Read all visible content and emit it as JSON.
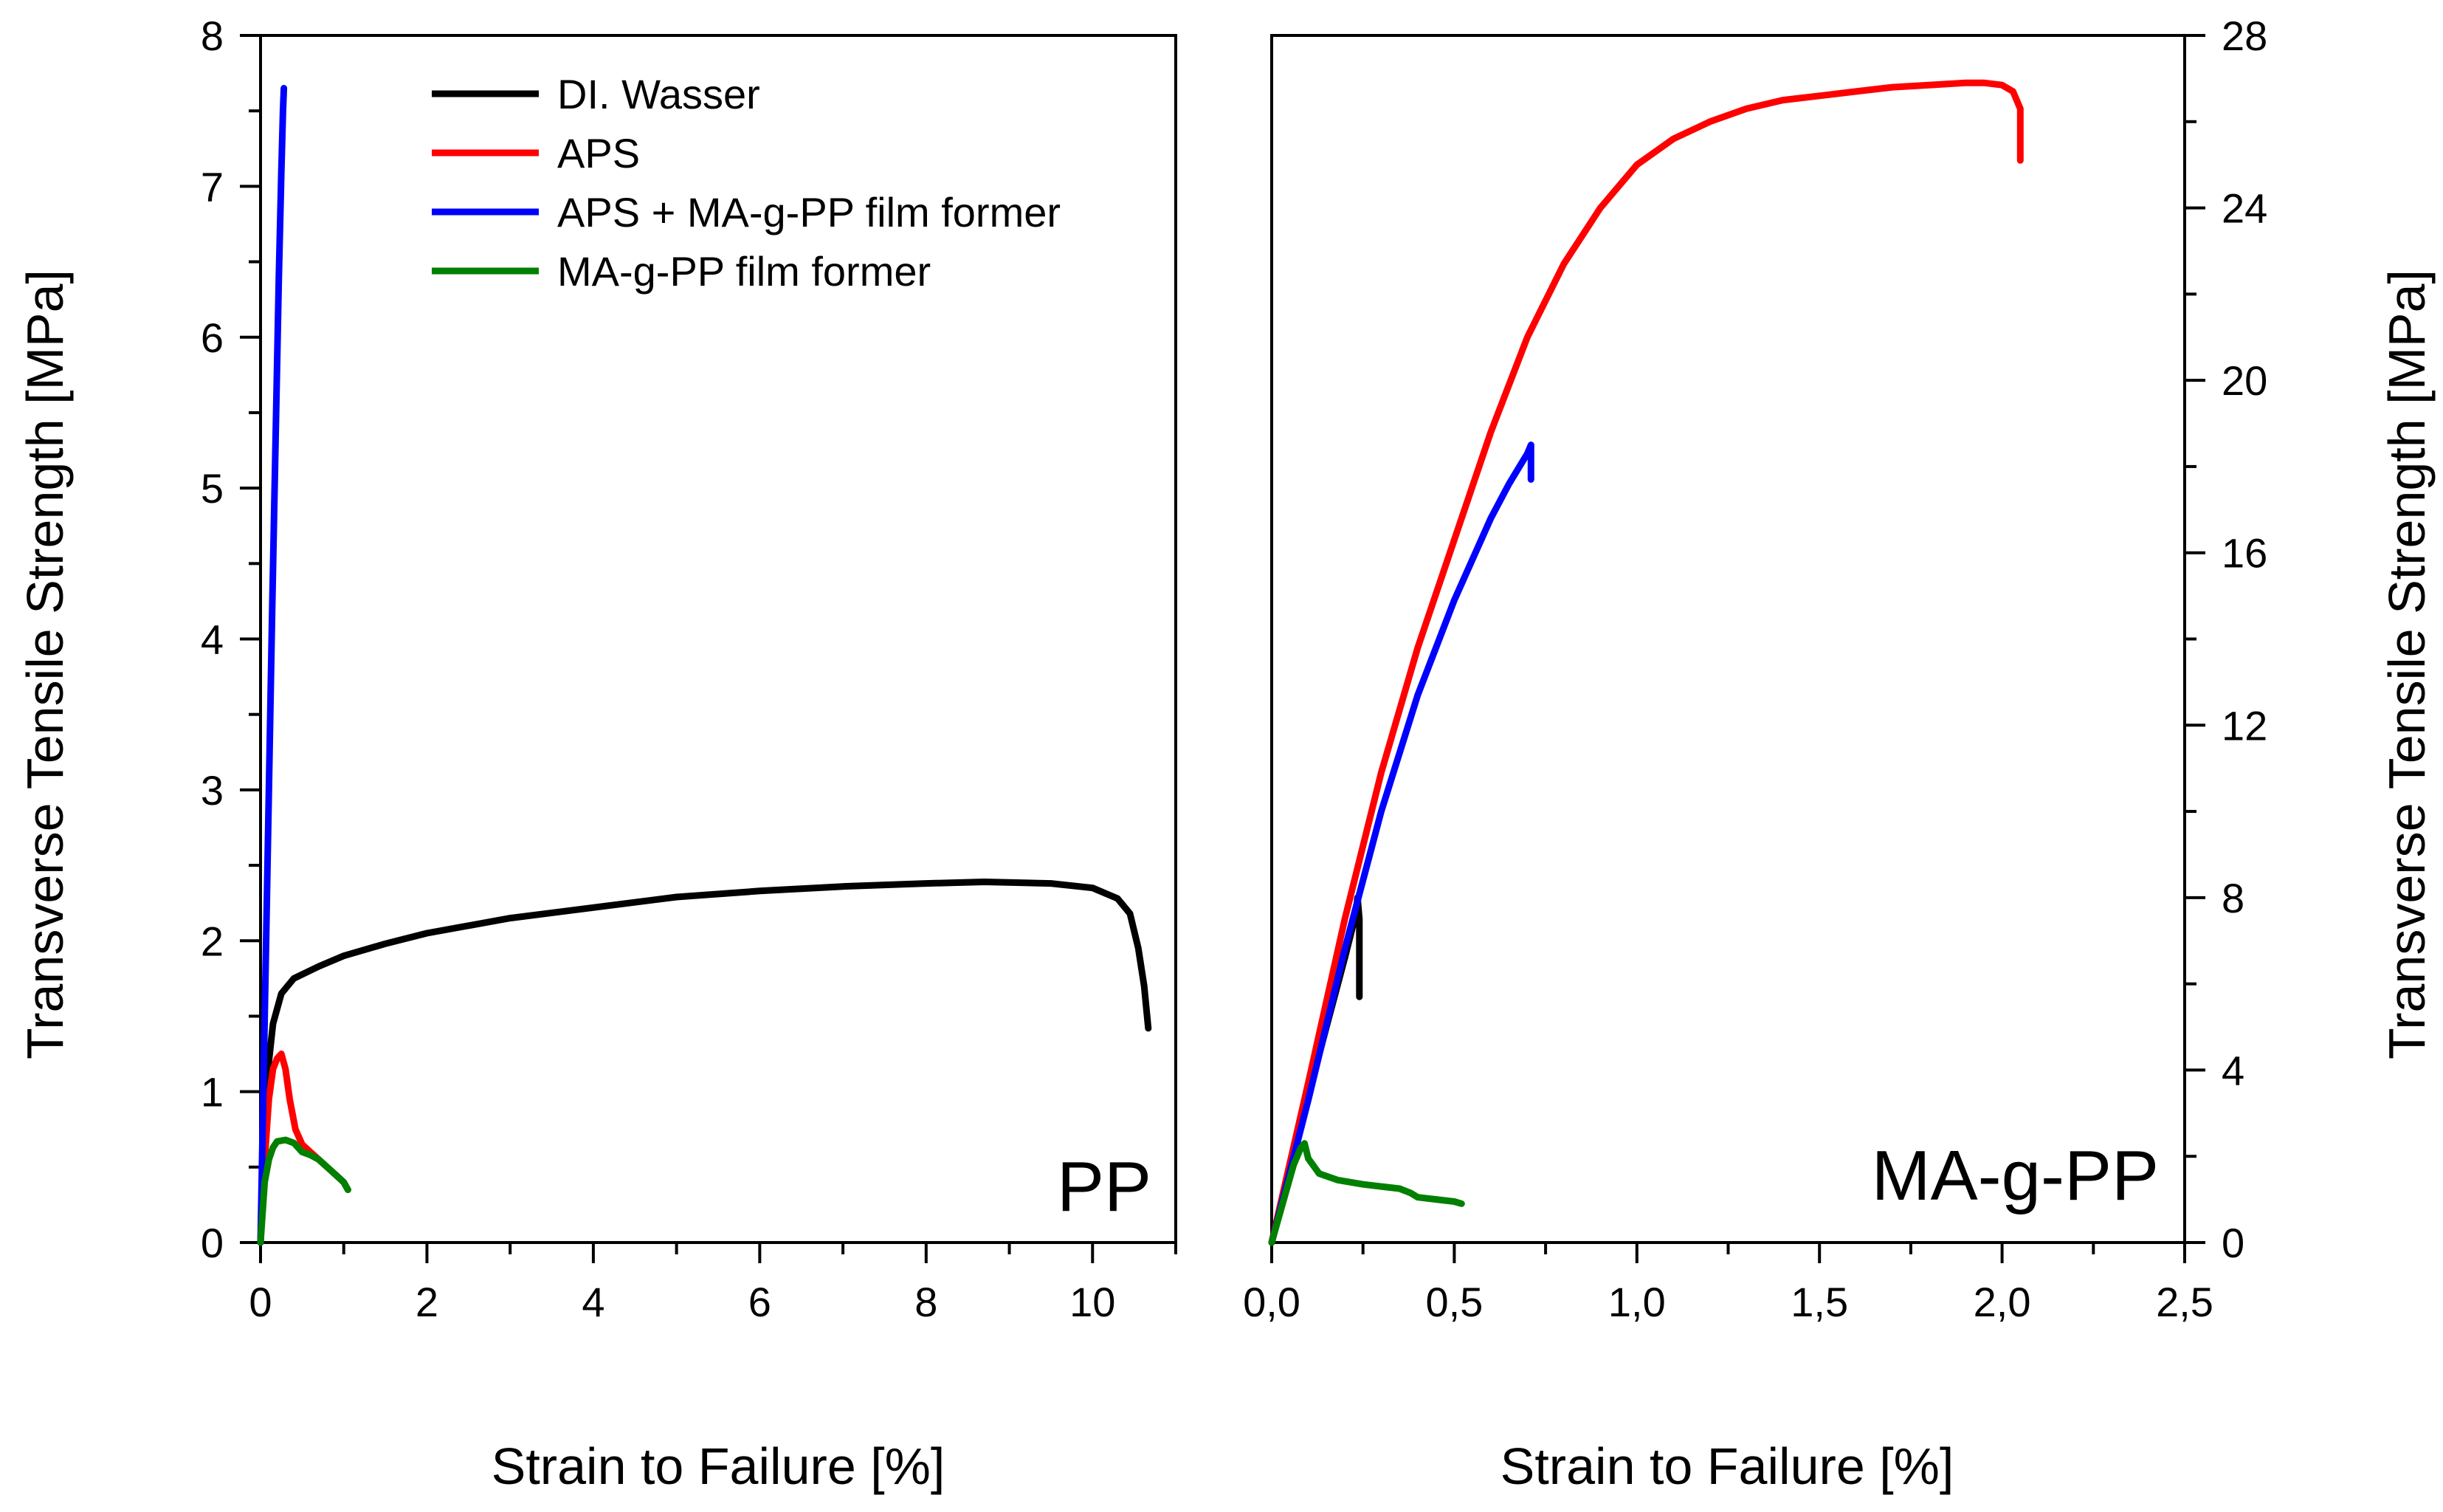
{
  "chart_data": [
    {
      "type": "line",
      "panel_label": "PP",
      "xlabel": "Strain to Failure [%]",
      "ylabel": "Transverse Tensile Strength [MPa]",
      "xlim": [
        0,
        11
      ],
      "ylim": [
        0,
        8
      ],
      "xticks": [
        0,
        2,
        4,
        6,
        8,
        10
      ],
      "xtick_labels": [
        "0",
        "2",
        "4",
        "6",
        "8",
        "10"
      ],
      "yticks": [
        0,
        1,
        2,
        3,
        4,
        5,
        6,
        7,
        8
      ],
      "ytick_labels": [
        "0",
        "1",
        "2",
        "3",
        "4",
        "5",
        "6",
        "7",
        "8"
      ],
      "legend_position": "top-center",
      "series": [
        {
          "name": "DI. Wasser",
          "color": "#000000",
          "x": [
            0,
            0.05,
            0.1,
            0.15,
            0.25,
            0.4,
            0.7,
            1.0,
            1.5,
            2,
            3,
            4,
            5,
            6,
            7,
            8,
            8.7,
            9.5,
            10.0,
            10.3,
            10.45,
            10.55,
            10.62,
            10.67
          ],
          "y": [
            0,
            0.7,
            1.2,
            1.45,
            1.65,
            1.75,
            1.83,
            1.9,
            1.98,
            2.05,
            2.15,
            2.22,
            2.29,
            2.33,
            2.36,
            2.38,
            2.39,
            2.38,
            2.35,
            2.28,
            2.18,
            1.95,
            1.7,
            1.42
          ]
        },
        {
          "name": "APS",
          "color": "#ff0000",
          "x": [
            0,
            0.05,
            0.1,
            0.15,
            0.2,
            0.25,
            0.3,
            0.35,
            0.42,
            0.5,
            0.6,
            0.7,
            0.8,
            0.9,
            1.0,
            1.05
          ],
          "y": [
            0,
            0.55,
            0.95,
            1.15,
            1.22,
            1.25,
            1.15,
            0.95,
            0.75,
            0.65,
            0.6,
            0.55,
            0.5,
            0.45,
            0.4,
            0.35
          ]
        },
        {
          "name": "APS + MA-g-PP film former",
          "color": "#0000ff",
          "x": [
            0,
            0.03,
            0.06,
            0.1,
            0.14,
            0.18,
            0.22,
            0.25,
            0.27,
            0.28
          ],
          "y": [
            0,
            0.9,
            1.8,
            3.0,
            4.2,
            5.3,
            6.4,
            7.1,
            7.5,
            7.65
          ]
        },
        {
          "name": "MA-g-PP film former",
          "color": "#008000",
          "x": [
            0,
            0.05,
            0.1,
            0.15,
            0.2,
            0.3,
            0.4,
            0.5,
            0.6,
            0.7,
            0.8,
            0.9,
            1.0,
            1.05
          ],
          "y": [
            0,
            0.4,
            0.55,
            0.63,
            0.67,
            0.68,
            0.66,
            0.6,
            0.58,
            0.55,
            0.5,
            0.45,
            0.4,
            0.35
          ]
        }
      ]
    },
    {
      "type": "line",
      "panel_label": "MA-g-PP",
      "xlabel": "Strain to Failure [%]",
      "ylabel": "Transverse Tensile Strength [MPa]",
      "xlim": [
        0,
        2.5
      ],
      "ylim": [
        0,
        28
      ],
      "xticks": [
        0,
        0.5,
        1.0,
        1.5,
        2.0,
        2.5
      ],
      "xtick_labels": [
        "0,0",
        "0,5",
        "1,0",
        "1,5",
        "2,0",
        "2,5"
      ],
      "yticks": [
        0,
        4,
        8,
        12,
        16,
        20,
        24,
        28
      ],
      "ytick_labels": [
        "0",
        "4",
        "8",
        "12",
        "16",
        "20",
        "24",
        "28"
      ],
      "series": [
        {
          "name": "DI. Wasser",
          "color": "#000000",
          "x": [
            0,
            0.05,
            0.1,
            0.15,
            0.2,
            0.23,
            0.235,
            0.24,
            0.24,
            0.24
          ],
          "y": [
            0,
            1.7,
            3.4,
            5.0,
            6.6,
            7.6,
            8.0,
            7.5,
            6.5,
            5.7
          ]
        },
        {
          "name": "APS",
          "color": "#ff0000",
          "x": [
            0,
            0.1,
            0.2,
            0.3,
            0.4,
            0.5,
            0.6,
            0.7,
            0.8,
            0.9,
            1.0,
            1.1,
            1.2,
            1.3,
            1.4,
            1.5,
            1.6,
            1.7,
            1.8,
            1.9,
            1.95,
            2.0,
            2.03,
            2.05,
            2.05
          ],
          "y": [
            0,
            3.7,
            7.5,
            10.9,
            13.8,
            16.3,
            18.8,
            21.0,
            22.7,
            24.0,
            25.0,
            25.6,
            26.0,
            26.3,
            26.5,
            26.6,
            26.7,
            26.8,
            26.85,
            26.9,
            26.9,
            26.85,
            26.7,
            26.3,
            25.1
          ]
        },
        {
          "name": "APS + MA-g-PP film former",
          "color": "#0000ff",
          "x": [
            0,
            0.1,
            0.2,
            0.3,
            0.4,
            0.5,
            0.6,
            0.65,
            0.7,
            0.71,
            0.71
          ],
          "y": [
            0,
            3.3,
            6.8,
            10.0,
            12.7,
            14.9,
            16.8,
            17.6,
            18.3,
            18.5,
            17.7
          ]
        },
        {
          "name": "MA-g-PP film former",
          "color": "#008000",
          "x": [
            0,
            0.03,
            0.06,
            0.08,
            0.09,
            0.1,
            0.13,
            0.18,
            0.25,
            0.3,
            0.35,
            0.38,
            0.4,
            0.45,
            0.5,
            0.52
          ],
          "y": [
            0,
            0.9,
            1.8,
            2.2,
            2.3,
            1.95,
            1.6,
            1.45,
            1.35,
            1.3,
            1.25,
            1.15,
            1.05,
            1.0,
            0.95,
            0.9
          ]
        }
      ]
    }
  ]
}
